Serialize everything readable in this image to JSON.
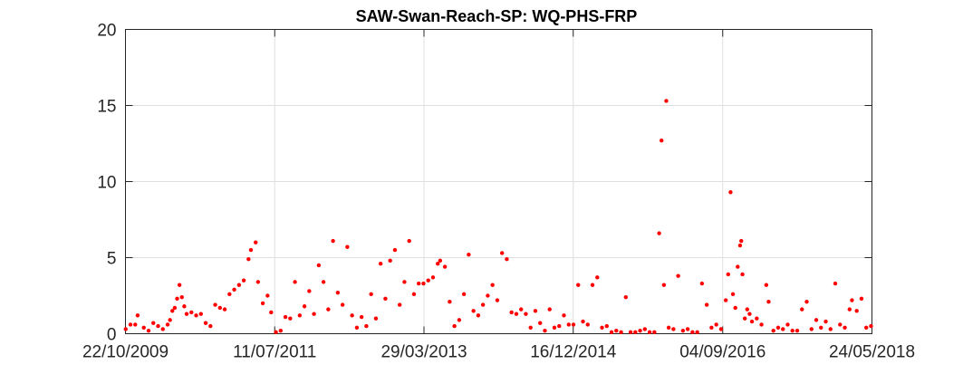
{
  "chart_data": {
    "type": "scatter",
    "title": "SAW-Swan-Reach-SP: WQ-PHS-FRP",
    "xlabel": "",
    "ylabel": "",
    "x_axis": "date",
    "xlim": [
      "2009-10-22",
      "2018-05-24"
    ],
    "ylim": [
      0,
      20
    ],
    "x_ticks": [
      "2009-10-22",
      "2011-07-11",
      "2013-03-29",
      "2014-12-16",
      "2016-09-04",
      "2018-05-24"
    ],
    "x_tick_labels": [
      "22/10/2009",
      "11/07/2011",
      "29/03/2013",
      "16/12/2014",
      "04/09/2016",
      "24/05/2018"
    ],
    "y_ticks": [
      0,
      5,
      10,
      15,
      20
    ],
    "y_tick_labels": [
      "0",
      "5",
      "10",
      "15",
      "20"
    ],
    "grid": true,
    "marker_color": "#ff0000",
    "series": [
      {
        "points": [
          [
            "2009-10-23",
            0.3
          ],
          [
            "2009-11-12",
            0.6
          ],
          [
            "2009-12-02",
            0.6
          ],
          [
            "2009-12-12",
            1.2
          ],
          [
            "2010-01-07",
            0.4
          ],
          [
            "2010-01-27",
            0.2
          ],
          [
            "2010-02-16",
            0.7
          ],
          [
            "2010-03-08",
            0.5
          ],
          [
            "2010-03-28",
            0.3
          ],
          [
            "2010-04-17",
            0.6
          ],
          [
            "2010-04-27",
            0.9
          ],
          [
            "2010-05-07",
            1.5
          ],
          [
            "2010-05-17",
            1.7
          ],
          [
            "2010-05-27",
            2.3
          ],
          [
            "2010-06-06",
            3.2
          ],
          [
            "2010-06-16",
            2.4
          ],
          [
            "2010-06-26",
            1.8
          ],
          [
            "2010-07-06",
            1.3
          ],
          [
            "2010-07-26",
            1.4
          ],
          [
            "2010-08-15",
            1.2
          ],
          [
            "2010-09-04",
            1.3
          ],
          [
            "2010-09-24",
            0.7
          ],
          [
            "2010-10-14",
            0.5
          ],
          [
            "2010-11-03",
            1.9
          ],
          [
            "2010-11-23",
            1.7
          ],
          [
            "2010-12-13",
            1.6
          ],
          [
            "2011-01-02",
            2.6
          ],
          [
            "2011-01-22",
            2.9
          ],
          [
            "2011-02-11",
            3.2
          ],
          [
            "2011-03-03",
            3.5
          ],
          [
            "2011-03-23",
            4.9
          ],
          [
            "2011-04-02",
            5.5
          ],
          [
            "2011-04-22",
            6.0
          ],
          [
            "2011-05-02",
            3.4
          ],
          [
            "2011-05-22",
            2.0
          ],
          [
            "2011-06-11",
            2.5
          ],
          [
            "2011-06-26",
            1.4
          ],
          [
            "2011-07-16",
            0.1
          ],
          [
            "2011-08-05",
            0.2
          ],
          [
            "2011-08-25",
            1.1
          ],
          [
            "2011-09-14",
            1.0
          ],
          [
            "2011-10-04",
            3.4
          ],
          [
            "2011-10-24",
            1.2
          ],
          [
            "2011-11-13",
            1.8
          ],
          [
            "2011-12-03",
            2.8
          ],
          [
            "2011-12-23",
            1.3
          ],
          [
            "2012-01-12",
            4.5
          ],
          [
            "2012-02-01",
            3.4
          ],
          [
            "2012-02-21",
            1.6
          ],
          [
            "2012-03-12",
            6.1
          ],
          [
            "2012-04-01",
            2.7
          ],
          [
            "2012-04-21",
            1.9
          ],
          [
            "2012-05-11",
            5.7
          ],
          [
            "2012-05-31",
            1.2
          ],
          [
            "2012-06-20",
            0.4
          ],
          [
            "2012-07-10",
            1.1
          ],
          [
            "2012-07-30",
            0.5
          ],
          [
            "2012-08-19",
            2.6
          ],
          [
            "2012-09-08",
            1.0
          ],
          [
            "2012-09-28",
            4.6
          ],
          [
            "2012-10-18",
            2.3
          ],
          [
            "2012-11-07",
            4.8
          ],
          [
            "2012-11-27",
            5.5
          ],
          [
            "2012-12-17",
            1.9
          ],
          [
            "2013-01-06",
            3.4
          ],
          [
            "2013-01-26",
            6.1
          ],
          [
            "2013-02-15",
            2.6
          ],
          [
            "2013-03-07",
            3.3
          ],
          [
            "2013-03-27",
            3.3
          ],
          [
            "2013-04-16",
            3.5
          ],
          [
            "2013-05-06",
            3.7
          ],
          [
            "2013-05-26",
            4.6
          ],
          [
            "2013-06-05",
            4.8
          ],
          [
            "2013-06-25",
            4.4
          ],
          [
            "2013-07-15",
            2.1
          ],
          [
            "2013-08-04",
            0.5
          ],
          [
            "2013-08-24",
            0.9
          ],
          [
            "2013-09-13",
            2.6
          ],
          [
            "2013-10-03",
            5.2
          ],
          [
            "2013-10-23",
            1.5
          ],
          [
            "2013-11-12",
            1.2
          ],
          [
            "2013-12-02",
            1.9
          ],
          [
            "2013-12-22",
            2.5
          ],
          [
            "2014-01-11",
            3.2
          ],
          [
            "2014-01-31",
            2.2
          ],
          [
            "2014-02-20",
            5.3
          ],
          [
            "2014-03-12",
            4.9
          ],
          [
            "2014-04-01",
            1.4
          ],
          [
            "2014-04-21",
            1.3
          ],
          [
            "2014-05-11",
            1.6
          ],
          [
            "2014-05-31",
            1.3
          ],
          [
            "2014-06-20",
            0.4
          ],
          [
            "2014-07-10",
            1.5
          ],
          [
            "2014-07-30",
            0.7
          ],
          [
            "2014-08-19",
            0.2
          ],
          [
            "2014-09-08",
            1.6
          ],
          [
            "2014-09-28",
            0.4
          ],
          [
            "2014-10-18",
            0.5
          ],
          [
            "2014-11-07",
            1.2
          ],
          [
            "2014-11-27",
            0.6
          ],
          [
            "2014-12-17",
            0.6
          ],
          [
            "2015-01-06",
            3.2
          ],
          [
            "2015-01-26",
            0.8
          ],
          [
            "2015-02-15",
            0.6
          ],
          [
            "2015-03-07",
            3.2
          ],
          [
            "2015-03-27",
            3.7
          ],
          [
            "2015-04-16",
            0.4
          ],
          [
            "2015-05-06",
            0.5
          ],
          [
            "2015-05-26",
            0.1
          ],
          [
            "2015-06-15",
            0.2
          ],
          [
            "2015-07-05",
            0.1
          ],
          [
            "2015-07-25",
            2.4
          ],
          [
            "2015-08-14",
            0.1
          ],
          [
            "2015-09-03",
            0.1
          ],
          [
            "2015-09-23",
            0.2
          ],
          [
            "2015-10-13",
            0.3
          ],
          [
            "2015-11-02",
            0.1
          ],
          [
            "2015-11-22",
            0.1
          ],
          [
            "2015-12-12",
            6.6
          ],
          [
            "2015-12-22",
            12.7
          ],
          [
            "2016-01-01",
            3.2
          ],
          [
            "2016-01-11",
            15.3
          ],
          [
            "2016-01-21",
            0.4
          ],
          [
            "2016-02-10",
            0.3
          ],
          [
            "2016-03-01",
            3.8
          ],
          [
            "2016-03-21",
            0.2
          ],
          [
            "2016-04-10",
            0.3
          ],
          [
            "2016-04-30",
            0.1
          ],
          [
            "2016-05-20",
            0.1
          ],
          [
            "2016-06-09",
            3.3
          ],
          [
            "2016-06-29",
            1.9
          ],
          [
            "2016-07-19",
            0.4
          ],
          [
            "2016-08-08",
            0.6
          ],
          [
            "2016-08-28",
            0.3
          ],
          [
            "2016-09-17",
            2.2
          ],
          [
            "2016-09-27",
            3.9
          ],
          [
            "2016-10-07",
            9.3
          ],
          [
            "2016-10-17",
            2.6
          ],
          [
            "2016-10-27",
            1.7
          ],
          [
            "2016-11-06",
            4.4
          ],
          [
            "2016-11-16",
            5.8
          ],
          [
            "2016-11-21",
            6.1
          ],
          [
            "2016-11-26",
            3.9
          ],
          [
            "2016-12-06",
            1.0
          ],
          [
            "2016-12-16",
            1.6
          ],
          [
            "2016-12-26",
            1.3
          ],
          [
            "2017-01-05",
            0.8
          ],
          [
            "2017-01-25",
            1.0
          ],
          [
            "2017-02-14",
            0.6
          ],
          [
            "2017-03-06",
            3.2
          ],
          [
            "2017-03-16",
            2.1
          ],
          [
            "2017-04-05",
            0.2
          ],
          [
            "2017-04-25",
            0.4
          ],
          [
            "2017-05-15",
            0.3
          ],
          [
            "2017-06-04",
            0.6
          ],
          [
            "2017-06-24",
            0.2
          ],
          [
            "2017-07-14",
            0.2
          ],
          [
            "2017-08-03",
            1.6
          ],
          [
            "2017-08-23",
            2.1
          ],
          [
            "2017-09-12",
            0.3
          ],
          [
            "2017-10-02",
            0.9
          ],
          [
            "2017-10-22",
            0.4
          ],
          [
            "2017-11-11",
            0.8
          ],
          [
            "2017-12-01",
            0.3
          ],
          [
            "2017-12-21",
            3.3
          ],
          [
            "2018-01-10",
            0.6
          ],
          [
            "2018-01-30",
            0.4
          ],
          [
            "2018-02-19",
            1.6
          ],
          [
            "2018-03-01",
            2.2
          ],
          [
            "2018-03-21",
            1.5
          ],
          [
            "2018-04-10",
            2.3
          ],
          [
            "2018-04-30",
            0.4
          ],
          [
            "2018-05-20",
            0.5
          ]
        ]
      }
    ]
  }
}
